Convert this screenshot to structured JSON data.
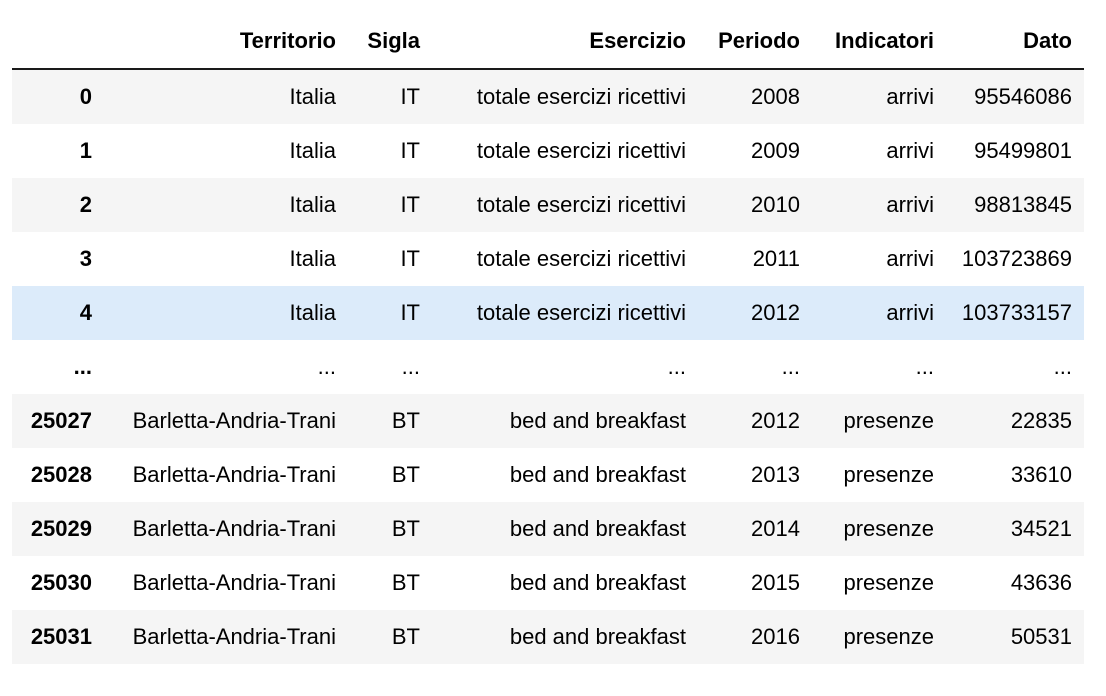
{
  "table": {
    "columns": {
      "index": "",
      "territorio": "Territorio",
      "sigla": "Sigla",
      "esercizio": "Esercizio",
      "periodo": "Periodo",
      "indicatori": "Indicatori",
      "dato": "Dato"
    },
    "rows": [
      {
        "index": "0",
        "territorio": "Italia",
        "sigla": "IT",
        "esercizio": "totale esercizi ricettivi",
        "periodo": "2008",
        "indicatori": "arrivi",
        "dato": "95546086"
      },
      {
        "index": "1",
        "territorio": "Italia",
        "sigla": "IT",
        "esercizio": "totale esercizi ricettivi",
        "periodo": "2009",
        "indicatori": "arrivi",
        "dato": "95499801"
      },
      {
        "index": "2",
        "territorio": "Italia",
        "sigla": "IT",
        "esercizio": "totale esercizi ricettivi",
        "periodo": "2010",
        "indicatori": "arrivi",
        "dato": "98813845"
      },
      {
        "index": "3",
        "territorio": "Italia",
        "sigla": "IT",
        "esercizio": "totale esercizi ricettivi",
        "periodo": "2011",
        "indicatori": "arrivi",
        "dato": "103723869"
      },
      {
        "index": "4",
        "territorio": "Italia",
        "sigla": "IT",
        "esercizio": "totale esercizi ricettivi",
        "periodo": "2012",
        "indicatori": "arrivi",
        "dato": "103733157"
      },
      {
        "index": "...",
        "territorio": "...",
        "sigla": "...",
        "esercizio": "...",
        "periodo": "...",
        "indicatori": "...",
        "dato": "..."
      },
      {
        "index": "25027",
        "territorio": "Barletta-Andria-Trani",
        "sigla": "BT",
        "esercizio": "bed and breakfast",
        "periodo": "2012",
        "indicatori": "presenze",
        "dato": "22835"
      },
      {
        "index": "25028",
        "territorio": "Barletta-Andria-Trani",
        "sigla": "BT",
        "esercizio": "bed and breakfast",
        "periodo": "2013",
        "indicatori": "presenze",
        "dato": "33610"
      },
      {
        "index": "25029",
        "territorio": "Barletta-Andria-Trani",
        "sigla": "BT",
        "esercizio": "bed and breakfast",
        "periodo": "2014",
        "indicatori": "presenze",
        "dato": "34521"
      },
      {
        "index": "25030",
        "territorio": "Barletta-Andria-Trani",
        "sigla": "BT",
        "esercizio": "bed and breakfast",
        "periodo": "2015",
        "indicatori": "presenze",
        "dato": "43636"
      },
      {
        "index": "25031",
        "territorio": "Barletta-Andria-Trani",
        "sigla": "BT",
        "esercizio": "bed and breakfast",
        "periodo": "2016",
        "indicatori": "presenze",
        "dato": "50531"
      }
    ],
    "highlighted_row": 4,
    "colors": {
      "stripe": "#f5f5f5",
      "hover": "#dcebfa",
      "header_rule": "#1a1a1a"
    }
  }
}
